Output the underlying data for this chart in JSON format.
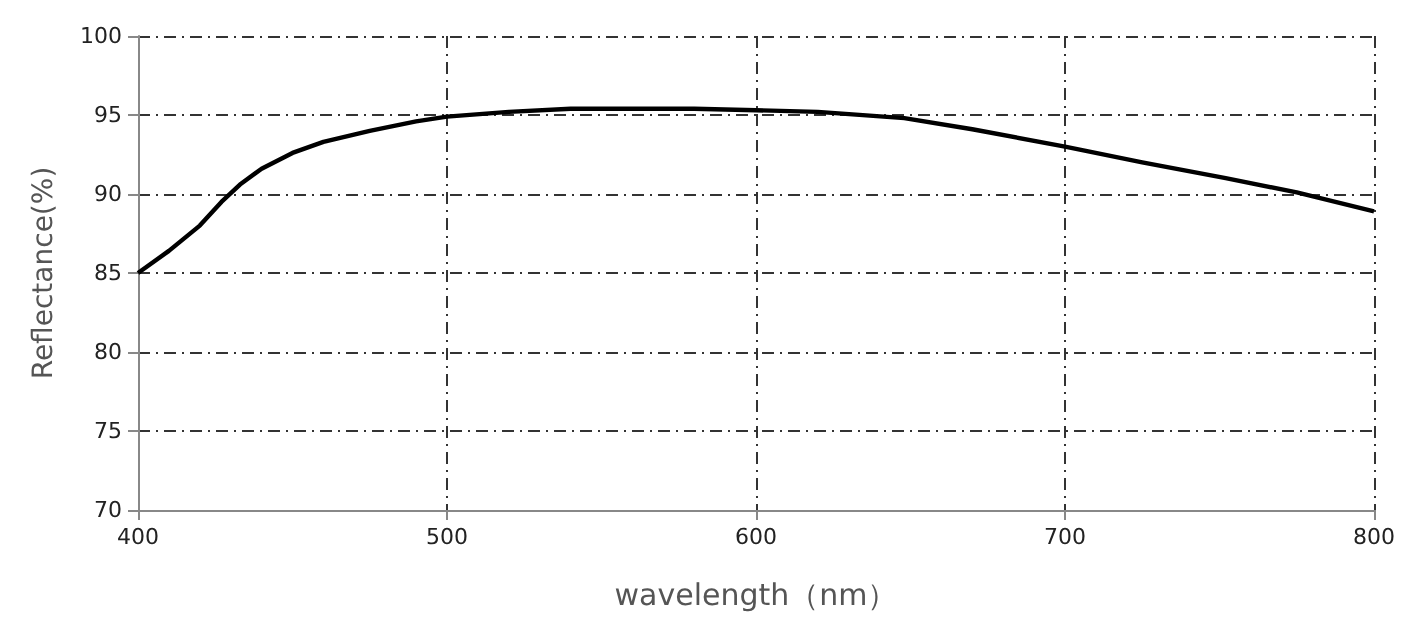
{
  "chart_data": {
    "type": "line",
    "xlabel": "wavelength（nm）",
    "ylabel": "Reflectance(%)",
    "x": [
      400,
      410,
      420,
      427,
      433,
      440,
      450,
      460,
      475,
      490,
      500,
      520,
      540,
      560,
      580,
      600,
      620,
      648,
      670,
      700,
      725,
      752,
      775,
      800
    ],
    "series": [
      {
        "color": "#000000",
        "values": [
          85,
          86.4,
          88,
          89.5,
          90.6,
          91.6,
          92.6,
          93.3,
          94,
          94.6,
          94.9,
          95.2,
          95.4,
          95.4,
          95.4,
          95.3,
          95.2,
          94.8,
          94.1,
          93,
          92,
          91,
          90.1,
          88.9
        ]
      }
    ],
    "xlim": [
      400,
      800
    ],
    "xticks": [
      400,
      500,
      600,
      700,
      800
    ],
    "ylim": [
      70,
      100
    ],
    "yticks": [
      70,
      75,
      80,
      85,
      90,
      95,
      100
    ],
    "grid": true,
    "legend": false,
    "marker": "none",
    "line_style": "solid"
  }
}
